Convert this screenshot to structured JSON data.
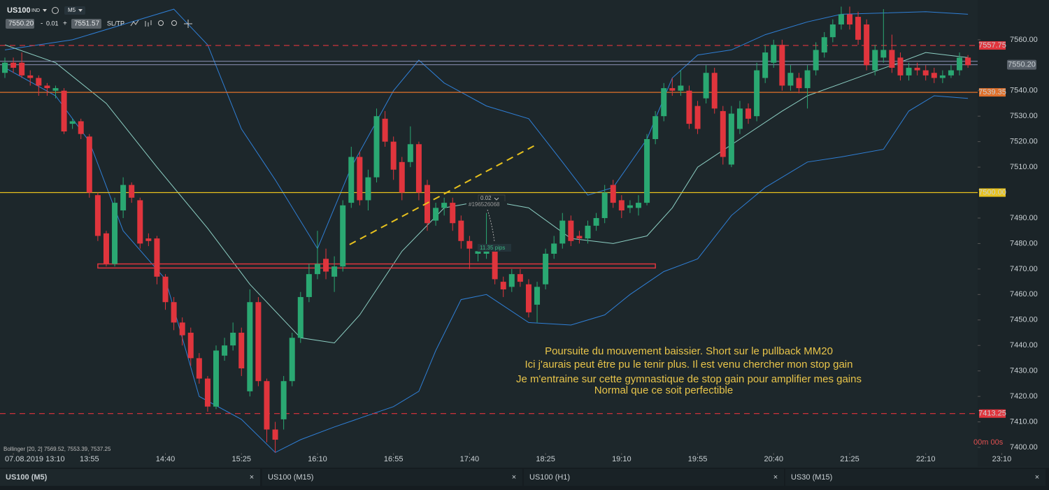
{
  "toolbar": {
    "symbol": "US100",
    "market": "IND",
    "timeframe": "M5",
    "bid": "7550.20",
    "lot_minus": "-",
    "lot": "0.01",
    "lot_plus": "+",
    "ask": "7551.57",
    "sltp": "SL/TP"
  },
  "chart_data": {
    "type": "candlestick",
    "x": [
      0,
      1,
      2,
      3,
      4,
      5,
      6,
      7,
      8,
      9,
      10,
      11,
      12,
      13,
      14,
      15,
      16,
      17,
      18,
      19,
      20,
      21,
      22,
      23,
      24,
      25,
      26,
      27,
      28,
      29,
      30,
      31,
      32,
      33,
      34,
      35,
      36,
      37,
      38,
      39,
      40,
      41,
      42,
      43,
      44,
      45,
      46,
      47,
      48,
      49,
      50,
      51,
      52,
      53,
      54,
      55,
      56,
      57,
      58,
      59,
      60,
      61,
      62,
      63,
      64,
      65,
      66,
      67,
      68,
      69,
      70,
      71,
      72,
      73,
      74,
      75,
      76,
      77,
      78,
      79,
      80,
      81,
      82,
      83,
      84,
      85,
      86,
      87,
      88,
      89,
      90,
      91,
      92,
      93,
      94,
      95,
      96,
      97,
      98,
      99,
      100,
      101,
      102,
      103,
      104,
      105,
      106,
      107,
      108,
      109,
      110,
      111,
      112,
      113,
      114
    ],
    "open": [
      7547,
      7551,
      7551,
      7546,
      7545,
      7542,
      7540,
      7540,
      7527,
      7528,
      7522,
      7499,
      7484,
      7472,
      7493,
      7503,
      7497,
      7482,
      7482,
      7467,
      7457,
      7449,
      7445,
      7435,
      7427,
      7416,
      7436,
      7440,
      7445,
      7422,
      7457,
      7426,
      7407,
      7411,
      7426,
      7443,
      7459,
      7468,
      7474,
      7467,
      7471,
      7496,
      7514,
      7497,
      7506,
      7529,
      7520,
      7512,
      7512,
      7519,
      7503,
      7489,
      7494,
      7496,
      7489,
      7481,
      7476,
      7476,
      7477,
      7465,
      7463,
      7468,
      7464,
      7456,
      7464,
      7476,
      7480,
      7489,
      7483,
      7482,
      7487,
      7490,
      7503,
      7497,
      7494,
      7494,
      7496,
      7521,
      7530,
      7541,
      7540,
      7540,
      7534,
      7537,
      7547,
      7532,
      7511,
      7525,
      7533,
      7530,
      7545,
      7551,
      7558,
      7542,
      7545,
      7541,
      7548,
      7555,
      7561,
      7566,
      7570,
      7569,
      7566,
      7548,
      7553,
      7556,
      7553,
      7546,
      7549,
      7548,
      7547,
      7545,
      7546,
      7548,
      7553
    ],
    "high": [
      7553,
      7553,
      7555,
      7548,
      7546,
      7543,
      7542,
      7541,
      7529,
      7529,
      7523,
      7500,
      7485,
      7498,
      7506,
      7504,
      7498,
      7484,
      7483,
      7468,
      7459,
      7451,
      7447,
      7437,
      7428,
      7440,
      7443,
      7449,
      7447,
      7462,
      7459,
      7427,
      7410,
      7428,
      7445,
      7461,
      7472,
      7485,
      7478,
      7475,
      7497,
      7518,
      7516,
      7509,
      7533,
      7532,
      7522,
      7514,
      7526,
      7520,
      7505,
      7496,
      7498,
      7498,
      7491,
      7483,
      7479,
      7492,
      7479,
      7467,
      7470,
      7470,
      7466,
      7465,
      7478,
      7483,
      7492,
      7491,
      7485,
      7489,
      7492,
      7503,
      7505,
      7499,
      7497,
      7499,
      7523,
      7532,
      7543,
      7545,
      7548,
      7542,
      7536,
      7550,
      7549,
      7534,
      7534,
      7536,
      7535,
      7551,
      7558,
      7560,
      7560,
      7550,
      7547,
      7550,
      7559,
      7563,
      7568,
      7573,
      7573,
      7571,
      7568,
      7558,
      7572,
      7562,
      7555,
      7551,
      7551,
      7550,
      7549,
      7548,
      7550,
      7555,
      7554
    ],
    "low": [
      7545,
      7547,
      7545,
      7542,
      7538,
      7538,
      7537,
      7523,
      7525,
      7521,
      7498,
      7481,
      7471,
      7471,
      7490,
      7496,
      7478,
      7479,
      7464,
      7454,
      7446,
      7440,
      7432,
      7425,
      7414,
      7415,
      7434,
      7438,
      7428,
      7420,
      7424,
      7402,
      7398,
      7407,
      7424,
      7441,
      7457,
      7466,
      7466,
      7461,
      7469,
      7494,
      7495,
      7493,
      7504,
      7518,
      7505,
      7497,
      7510,
      7497,
      7485,
      7487,
      7491,
      7485,
      7478,
      7470,
      7473,
      7474,
      7464,
      7459,
      7461,
      7463,
      7451,
      7449,
      7462,
      7474,
      7478,
      7479,
      7480,
      7480,
      7485,
      7488,
      7494,
      7490,
      7492,
      7491,
      7495,
      7519,
      7528,
      7538,
      7538,
      7525,
      7523,
      7535,
      7531,
      7511,
      7510,
      7523,
      7527,
      7528,
      7543,
      7549,
      7540,
      7540,
      7539,
      7533,
      7546,
      7553,
      7559,
      7564,
      7564,
      7558,
      7548,
      7546,
      7551,
      7547,
      7544,
      7544,
      7546,
      7544,
      7543,
      7543,
      7545,
      7546,
      7549
    ],
    "close": [
      7551,
      7549,
      7546,
      7545,
      7542,
      7541,
      7541,
      7524,
      7528,
      7523,
      7500,
      7483,
      7472,
      7496,
      7503,
      7498,
      7480,
      7481,
      7467,
      7457,
      7449,
      7444,
      7435,
      7427,
      7416,
      7438,
      7440,
      7445,
      7431,
      7457,
      7426,
      7407,
      7403,
      7426,
      7443,
      7459,
      7468,
      7472,
      7469,
      7471,
      7495,
      7514,
      7497,
      7506,
      7530,
      7520,
      7509,
      7500,
      7519,
      7500,
      7488,
      7494,
      7496,
      7488,
      7481,
      7478,
      7477,
      7477,
      7466,
      7462,
      7468,
      7465,
      7453,
      7463,
      7476,
      7480,
      7489,
      7481,
      7482,
      7487,
      7490,
      7500,
      7496,
      7493,
      7495,
      7496,
      7521,
      7530,
      7541,
      7540,
      7542,
      7527,
      7525,
      7547,
      7533,
      7514,
      7531,
      7533,
      7529,
      7548,
      7555,
      7558,
      7542,
      7547,
      7541,
      7548,
      7556,
      7561,
      7566,
      7570,
      7566,
      7560,
      7550,
      7556,
      7556,
      7549,
      7546,
      7549,
      7548,
      7546,
      7545,
      7546,
      7548,
      7553,
      7550
    ],
    "up_color": "#2aa872",
    "down_color": "#e0353d",
    "xlim": [
      -0.58,
      115.15
    ],
    "xticks": [
      {
        "value": 1,
        "label": "07.08.2019 13:10"
      },
      {
        "value": 10,
        "label": "13:55"
      },
      {
        "value": 19,
        "label": "14:40"
      },
      {
        "value": 28,
        "label": "15:25"
      },
      {
        "value": 37,
        "label": "16:10"
      },
      {
        "value": 46,
        "label": "16:55"
      },
      {
        "value": 55,
        "label": "17:40"
      },
      {
        "value": 64,
        "label": "18:25"
      },
      {
        "value": 73,
        "label": "19:10"
      },
      {
        "value": 82,
        "label": "19:55"
      },
      {
        "value": 91,
        "label": "20:40"
      },
      {
        "value": 100,
        "label": "21:25"
      },
      {
        "value": 109,
        "label": "22:10"
      },
      {
        "value": 118,
        "label": "23:10"
      }
    ],
    "ylim": [
      7397.8,
      7575.6
    ],
    "yticks": [
      {
        "value": 7560,
        "label": "7560.00"
      },
      {
        "value": 7540,
        "label": "7540.00"
      },
      {
        "value": 7530,
        "label": "7530.00"
      },
      {
        "value": 7520,
        "label": "7520.00"
      },
      {
        "value": 7510,
        "label": "7510.00"
      },
      {
        "value": 7490,
        "label": "7490.00"
      },
      {
        "value": 7480,
        "label": "7480.00"
      },
      {
        "value": 7470,
        "label": "7470.00"
      },
      {
        "value": 7460,
        "label": "7460.00"
      },
      {
        "value": 7450,
        "label": "7450.00"
      },
      {
        "value": 7440,
        "label": "7440.00"
      },
      {
        "value": 7430,
        "label": "7430.00"
      },
      {
        "value": 7420,
        "label": "7420.00"
      },
      {
        "value": 7410,
        "label": "7410.00"
      },
      {
        "value": 7400,
        "label": "7400.00"
      }
    ],
    "grid": false,
    "bollinger": {
      "label": "Bollinger [20, 2] 7569.52, 7553.39, 7537.25",
      "band_color": "#2f7fd6",
      "middle_color": "#8ccfc3",
      "upper": {
        "x": [
          0,
          8,
          14,
          20,
          24,
          28,
          32,
          37,
          41,
          46,
          49,
          52,
          57,
          62,
          66,
          69,
          72,
          76,
          79,
          82,
          86,
          90,
          95,
          99,
          109,
          114
        ],
        "values": [
          7556,
          7560,
          7566,
          7572,
          7558,
          7525,
          7505,
          7478,
          7510,
          7540,
          7552,
          7543,
          7534,
          7529,
          7512,
          7499,
          7502,
          7521,
          7545,
          7554,
          7556,
          7562,
          7567,
          7570,
          7571,
          7570
        ]
      },
      "middle": {
        "x": [
          0,
          6,
          12,
          18,
          24,
          29,
          35,
          39,
          42,
          47,
          52,
          57,
          62,
          67,
          72,
          76,
          79,
          82,
          87,
          92,
          95,
          100,
          105,
          109,
          114
        ],
        "values": [
          7558,
          7551,
          7535,
          7510,
          7486,
          7464,
          7443,
          7441,
          7452,
          7477,
          7494,
          7497,
          7494,
          7482,
          7480,
          7483,
          7494,
          7510,
          7521,
          7532,
          7538,
          7544,
          7550,
          7555,
          7553
        ]
      },
      "lower": {
        "x": [
          0,
          6,
          10,
          14,
          19,
          23,
          28,
          32,
          35,
          39,
          46,
          49,
          51,
          54,
          57,
          62,
          67,
          71,
          74,
          78,
          82,
          86,
          90,
          95,
          99,
          104,
          107,
          110,
          114
        ],
        "values": [
          7549,
          7538,
          7520,
          7485,
          7466,
          7420,
          7411,
          7398,
          7403,
          7408,
          7416,
          7422,
          7438,
          7458,
          7460,
          7449,
          7448,
          7452,
          7460,
          7469,
          7474,
          7491,
          7502,
          7512,
          7514,
          7517,
          7532,
          7538,
          7537
        ]
      }
    },
    "levels": [
      {
        "value": 7557.75,
        "label": "7557.75",
        "color": "#e0353d",
        "dashed": true
      },
      {
        "value": 7539.35,
        "label": "7539.35",
        "color": "#e0702a",
        "dashed": false
      },
      {
        "value": 7500,
        "label": "7500.00",
        "color": "#e8c21e",
        "dashed": false
      },
      {
        "value": 7413.25,
        "label": "7413.25",
        "color": "#e0353d",
        "dashed": true
      }
    ],
    "bid_line": {
      "value": 7550.2,
      "label": "7550.20",
      "color": "#8a90b4"
    },
    "ask_line": {
      "value": 7551.57,
      "color": "#8a90b4"
    },
    "zone": {
      "y": [
        7470.4,
        7472.0
      ],
      "x": [
        11,
        77
      ],
      "color": "#e0353d"
    },
    "trendline": {
      "x": [
        40.8,
        63
      ],
      "y": [
        7479.6,
        7519
      ],
      "color": "#e8c21e"
    },
    "order": {
      "lot": "0.02",
      "ticket": "#196526068",
      "distance": "11.35 pips"
    },
    "annotation": [
      "Poursuite du mouvement baissier. Short sur le pullback MM20",
      "Ici j'aurais peut être pu le tenir plus. Il est venu chercher mon stop gain",
      "Je m'entraine sur cette gymnastique de stop gain pour amplifier mes gains",
      "Normal que ce soit perfectible"
    ],
    "timer": "00m 00s"
  },
  "tabs": [
    {
      "label": "US100 (M5)",
      "close": "×"
    },
    {
      "label": "US100 (M15)",
      "close": "×"
    },
    {
      "label": "US100 (H1)",
      "close": "×"
    },
    {
      "label": "US30 (M15)",
      "close": "×"
    }
  ]
}
